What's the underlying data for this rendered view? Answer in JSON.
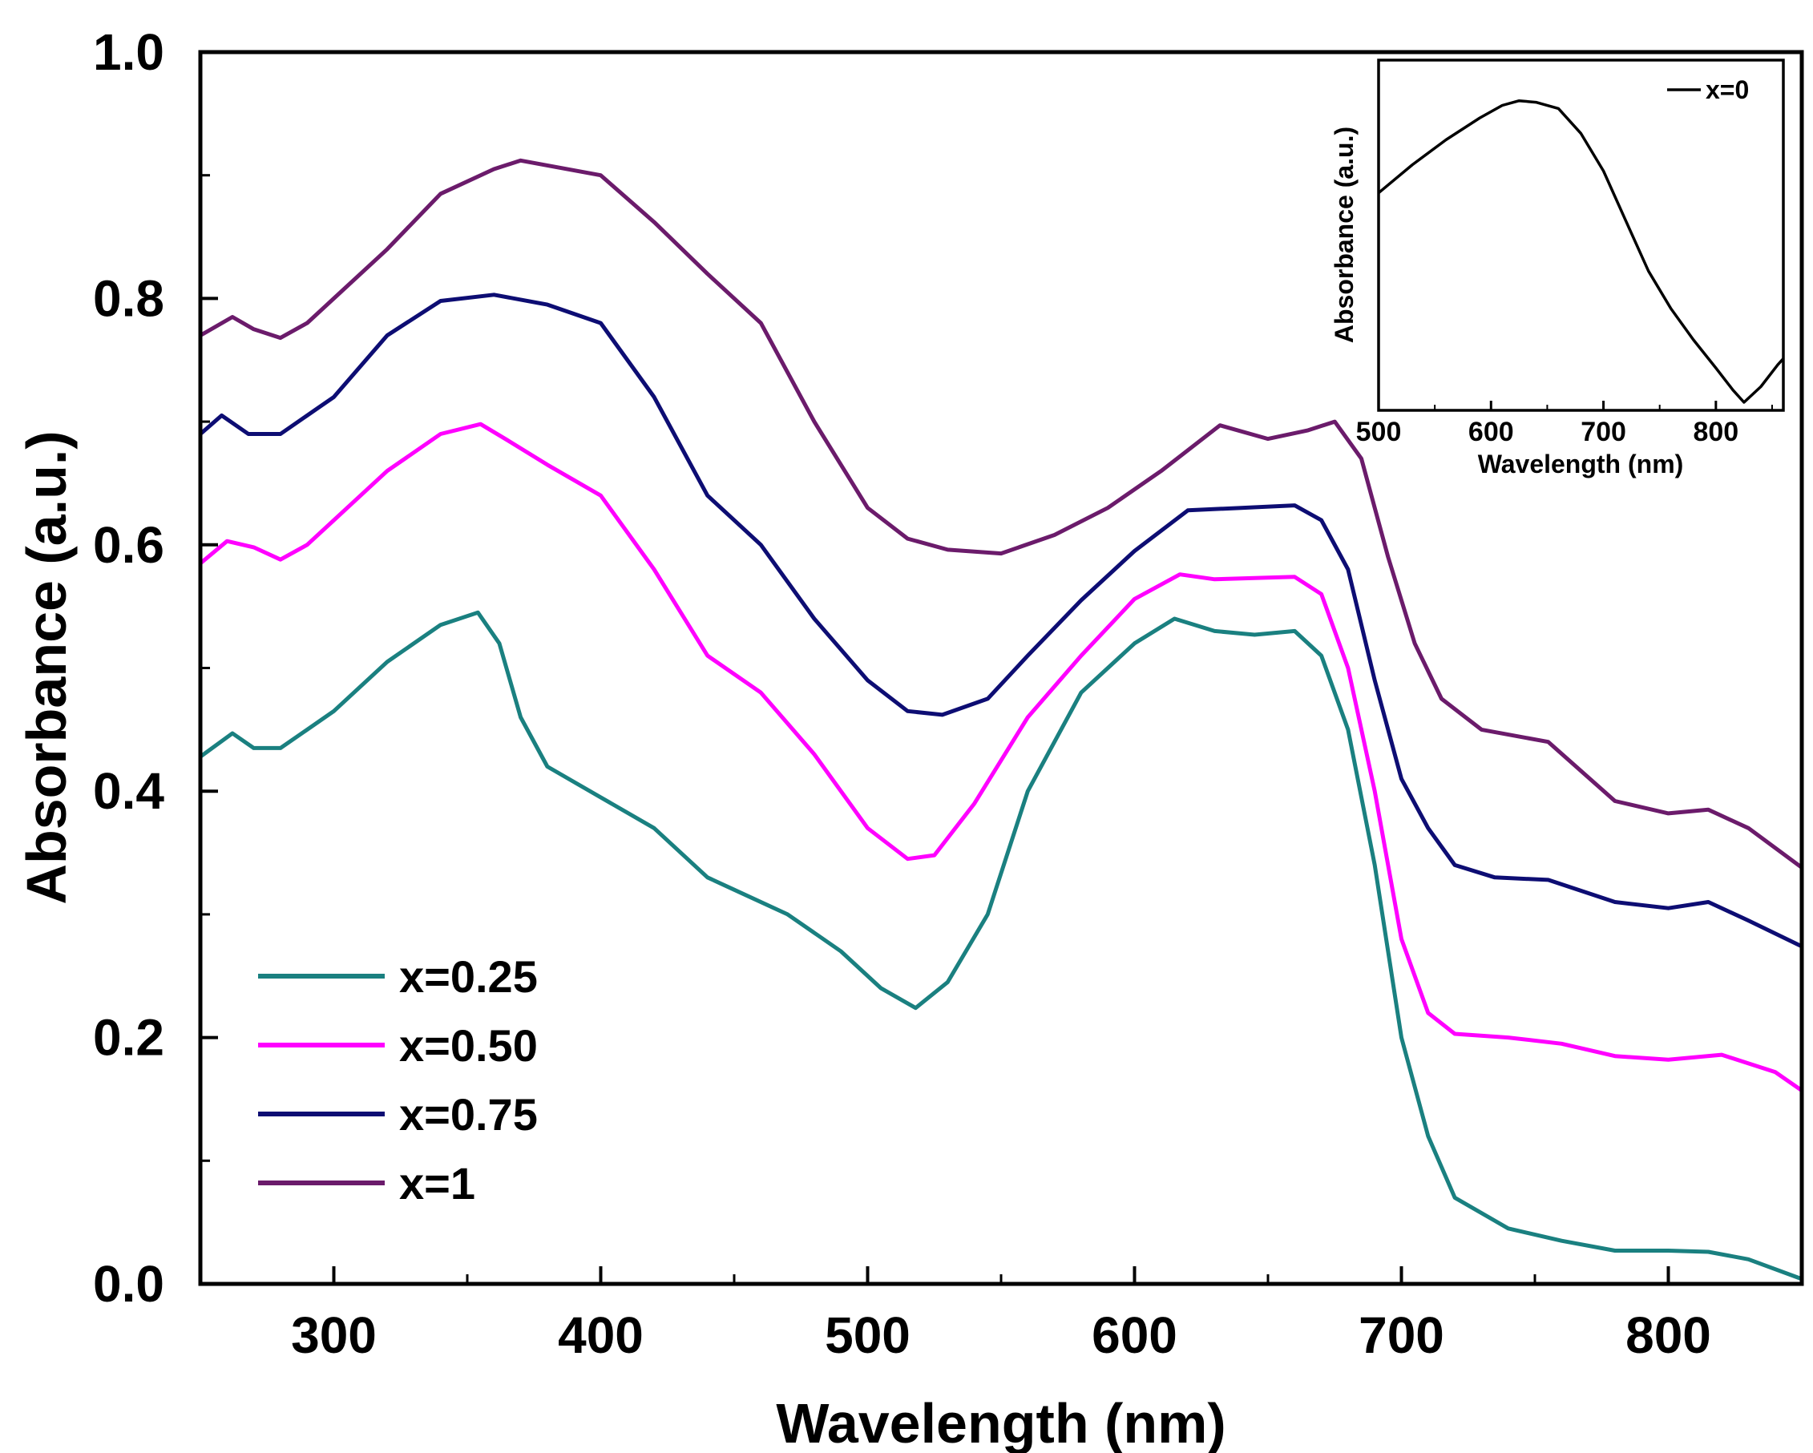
{
  "chart_data": [
    {
      "type": "line",
      "title": "",
      "xlabel": "Wavelength (nm)",
      "ylabel": "Absorbance (a.u.)",
      "xlim": [
        250,
        850
      ],
      "ylim": [
        0.0,
        1.0
      ],
      "x_ticks": [
        300,
        400,
        500,
        600,
        700,
        800
      ],
      "x_tick_labels": [
        "300",
        "400",
        "500",
        "600",
        "700",
        "800"
      ],
      "y_ticks": [
        0.0,
        0.2,
        0.4,
        0.6,
        0.8,
        1.0
      ],
      "y_tick_labels": [
        "0.0",
        "0.2",
        "0.4",
        "0.6",
        "0.8",
        "1.0"
      ],
      "grid": false,
      "legend_position": "bottom-left",
      "series": [
        {
          "name": "x=0.25",
          "color": "#1a8080",
          "x": [
            250,
            262,
            270,
            280,
            290,
            300,
            320,
            340,
            354,
            362,
            370,
            380,
            400,
            420,
            440,
            450,
            470,
            490,
            505,
            518,
            530,
            545,
            560,
            580,
            600,
            615,
            630,
            645,
            660,
            670,
            680,
            690,
            700,
            710,
            720,
            740,
            760,
            780,
            800,
            815,
            830,
            850
          ],
          "y": [
            0.428,
            0.447,
            0.435,
            0.435,
            0.45,
            0.465,
            0.505,
            0.535,
            0.545,
            0.52,
            0.46,
            0.42,
            0.395,
            0.37,
            0.33,
            0.32,
            0.3,
            0.27,
            0.24,
            0.224,
            0.245,
            0.3,
            0.4,
            0.48,
            0.52,
            0.54,
            0.53,
            0.527,
            0.53,
            0.51,
            0.45,
            0.34,
            0.2,
            0.12,
            0.07,
            0.045,
            0.035,
            0.027,
            0.027,
            0.026,
            0.02,
            0.004
          ]
        },
        {
          "name": "x=0.50",
          "color": "#ff00ff",
          "x": [
            250,
            260,
            270,
            280,
            290,
            300,
            320,
            340,
            355,
            365,
            380,
            400,
            420,
            440,
            460,
            480,
            500,
            515,
            525,
            540,
            560,
            580,
            600,
            617,
            630,
            645,
            660,
            670,
            680,
            690,
            700,
            710,
            720,
            740,
            760,
            780,
            800,
            820,
            840,
            850
          ],
          "y": [
            0.585,
            0.603,
            0.598,
            0.588,
            0.6,
            0.62,
            0.66,
            0.69,
            0.698,
            0.685,
            0.665,
            0.64,
            0.58,
            0.51,
            0.48,
            0.43,
            0.37,
            0.345,
            0.348,
            0.39,
            0.46,
            0.51,
            0.556,
            0.576,
            0.572,
            0.573,
            0.574,
            0.56,
            0.5,
            0.4,
            0.28,
            0.22,
            0.203,
            0.2,
            0.195,
            0.185,
            0.182,
            0.186,
            0.172,
            0.157
          ]
        },
        {
          "name": "x=0.75",
          "color": "#0d0d73",
          "x": [
            250,
            258,
            268,
            280,
            290,
            300,
            320,
            340,
            360,
            380,
            400,
            420,
            440,
            460,
            480,
            500,
            515,
            528,
            545,
            560,
            580,
            600,
            620,
            640,
            660,
            670,
            680,
            690,
            700,
            710,
            720,
            735,
            755,
            780,
            800,
            815,
            830,
            850
          ],
          "y": [
            0.69,
            0.705,
            0.69,
            0.69,
            0.705,
            0.72,
            0.77,
            0.798,
            0.803,
            0.795,
            0.78,
            0.72,
            0.64,
            0.6,
            0.54,
            0.49,
            0.465,
            0.462,
            0.475,
            0.51,
            0.555,
            0.595,
            0.628,
            0.63,
            0.632,
            0.62,
            0.58,
            0.49,
            0.41,
            0.37,
            0.34,
            0.33,
            0.328,
            0.31,
            0.305,
            0.31,
            0.295,
            0.274
          ]
        },
        {
          "name": "x=1",
          "color": "#6b1b6b",
          "x": [
            250,
            262,
            270,
            280,
            290,
            300,
            320,
            340,
            360,
            370,
            380,
            400,
            420,
            440,
            460,
            480,
            500,
            515,
            530,
            550,
            570,
            590,
            610,
            632,
            650,
            665,
            675,
            685,
            695,
            705,
            715,
            730,
            755,
            780,
            800,
            815,
            830,
            850
          ],
          "y": [
            0.77,
            0.785,
            0.775,
            0.768,
            0.78,
            0.8,
            0.84,
            0.885,
            0.905,
            0.912,
            0.908,
            0.9,
            0.862,
            0.82,
            0.78,
            0.7,
            0.63,
            0.605,
            0.596,
            0.593,
            0.608,
            0.63,
            0.66,
            0.697,
            0.686,
            0.693,
            0.7,
            0.67,
            0.59,
            0.52,
            0.475,
            0.45,
            0.44,
            0.392,
            0.382,
            0.385,
            0.37,
            0.338
          ]
        }
      ]
    },
    {
      "type": "line",
      "title": "",
      "xlabel": "Wavelength (nm)",
      "ylabel": "Absorbance (a.u.)",
      "xlim": [
        500,
        860
      ],
      "ylim": [
        0.0,
        1.0
      ],
      "x_ticks": [
        500,
        600,
        700,
        800
      ],
      "x_tick_labels": [
        "500",
        "600",
        "700",
        "800"
      ],
      "grid": false,
      "legend_position": "top-right",
      "series": [
        {
          "name": "x=0",
          "color": "#000000",
          "x": [
            500,
            530,
            560,
            590,
            610,
            625,
            640,
            660,
            680,
            700,
            720,
            740,
            760,
            780,
            800,
            815,
            825,
            840,
            855,
            860
          ],
          "y": [
            0.67,
            0.76,
            0.84,
            0.91,
            0.95,
            0.965,
            0.96,
            0.94,
            0.86,
            0.74,
            0.58,
            0.42,
            0.3,
            0.2,
            0.11,
            0.04,
            0.0,
            0.05,
            0.12,
            0.14
          ]
        }
      ]
    }
  ]
}
